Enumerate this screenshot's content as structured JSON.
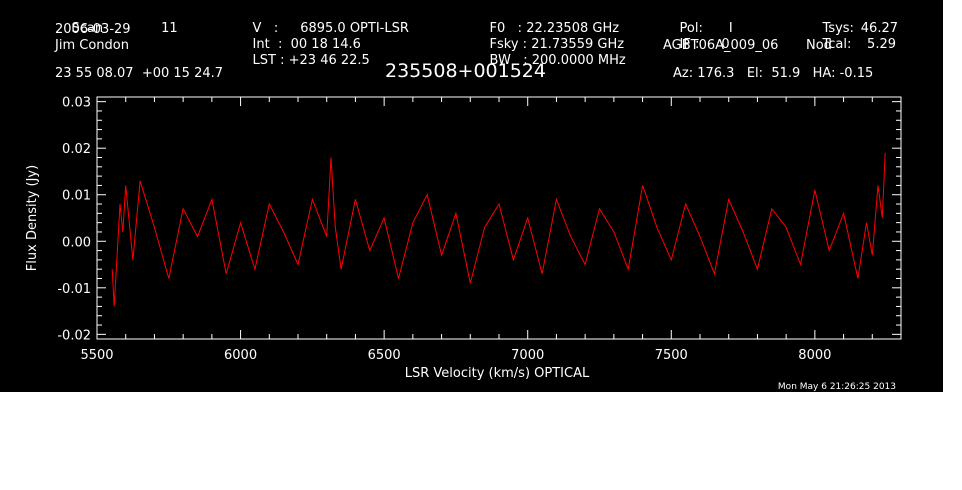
{
  "header": {
    "scan_label": "Scan",
    "scan_value": "11",
    "date": "2006-03-29",
    "observer": "Jim Condon",
    "v_label": "V   :",
    "v_value": "6895.0 OPTI-LSR",
    "int_label": "Int  :",
    "int_value": "00 18 14.6",
    "lst_label": "LST :",
    "lst_value": "+23 46 22.5",
    "f0_label": "F0   :",
    "f0_value": "22.23508 GHz",
    "fsky_label": "Fsky :",
    "fsky_value": "21.73559 GHz",
    "bw_label": "BW   :",
    "bw_value": "200.0000 MHz",
    "pol_label": "Pol:",
    "pol_value": "I",
    "if_label": "IF :",
    "if_value": "0",
    "project": "AGBT06A_009_06",
    "tsys_label": "Tsys:",
    "tsys_value": "46.27",
    "tcal_label": "Tcal:",
    "tcal_value": "5.29",
    "proc": "Nod",
    "coords": "23 55 08.07  +00 15 24.7",
    "source": "235508+001524",
    "az_el_ha": "Az: 176.3   El:  51.9   HA: -0.15",
    "timestamp": "Mon May  6 21:26:25 2013"
  },
  "colors": {
    "background": "#000000",
    "axes": "#ffffff",
    "trace": "#ff0000"
  },
  "chart_data": {
    "type": "line",
    "title": "235508+001524",
    "xlabel": "LSR Velocity (km/s) OPTICAL",
    "ylabel": "Flux Density (Jy)",
    "xlim": [
      5500,
      8300
    ],
    "ylim": [
      -0.021,
      0.031
    ],
    "grid": false,
    "x_ticks": [
      5500,
      6000,
      6500,
      7000,
      7500,
      8000
    ],
    "x_tick_labels": [
      "5500",
      "6000",
      "6500",
      "7000",
      "7500",
      "8000"
    ],
    "y_ticks": [
      -0.02,
      -0.01,
      0.0,
      0.01,
      0.02,
      0.03
    ],
    "y_tick_labels": [
      "-0.02",
      "-0.01",
      "0.00",
      "0.01",
      "0.02",
      "0.03"
    ],
    "series": [
      {
        "color": "#ff0000",
        "x": [
          5553,
          5560,
          5570,
          5580,
          5590,
          5600,
          5625,
          5650,
          5700,
          5750,
          5800,
          5850,
          5900,
          5950,
          6000,
          6050,
          6100,
          6150,
          6200,
          6250,
          6300,
          6315,
          6330,
          6350,
          6400,
          6450,
          6500,
          6550,
          6600,
          6650,
          6700,
          6750,
          6800,
          6850,
          6900,
          6950,
          7000,
          7050,
          7100,
          7150,
          7200,
          7250,
          7300,
          7350,
          7400,
          7450,
          7500,
          7550,
          7600,
          7650,
          7700,
          7750,
          7800,
          7850,
          7900,
          7950,
          8000,
          8050,
          8100,
          8150,
          8180,
          8200,
          8220,
          8235,
          8245
        ],
        "y": [
          -0.006,
          -0.014,
          -0.003,
          0.008,
          0.002,
          0.012,
          -0.004,
          0.013,
          0.003,
          -0.008,
          0.007,
          0.001,
          0.009,
          -0.007,
          0.004,
          -0.006,
          0.008,
          0.002,
          -0.005,
          0.009,
          0.001,
          0.018,
          0.003,
          -0.006,
          0.009,
          -0.002,
          0.005,
          -0.008,
          0.004,
          0.01,
          -0.003,
          0.006,
          -0.009,
          0.003,
          0.008,
          -0.004,
          0.005,
          -0.007,
          0.009,
          0.001,
          -0.005,
          0.007,
          0.002,
          -0.006,
          0.012,
          0.003,
          -0.004,
          0.008,
          0.001,
          -0.007,
          0.009,
          0.002,
          -0.006,
          0.007,
          0.003,
          -0.005,
          0.011,
          -0.002,
          0.006,
          -0.008,
          0.004,
          -0.003,
          0.012,
          0.005,
          0.019
        ]
      }
    ]
  }
}
